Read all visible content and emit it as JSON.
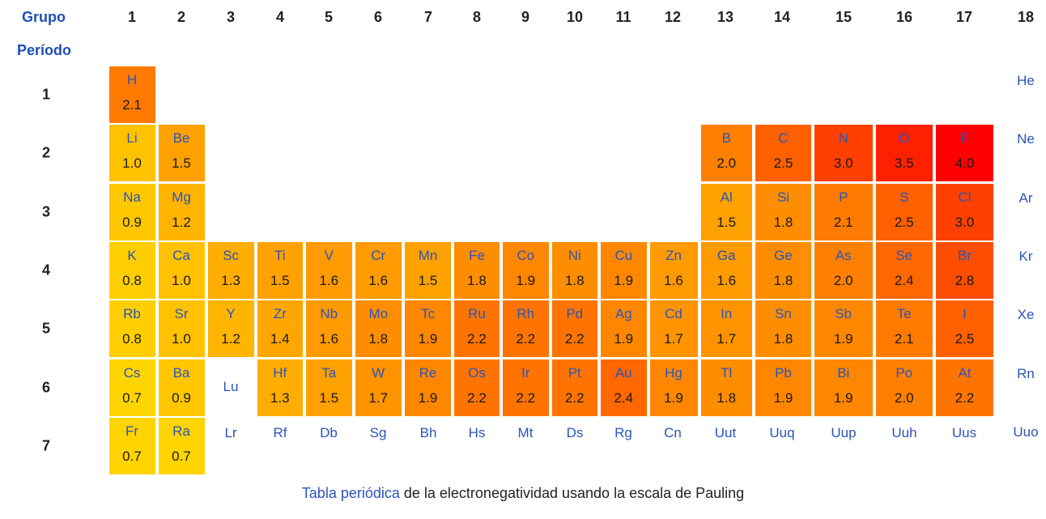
{
  "header": {
    "group_label": "Grupo",
    "period_label": "Período"
  },
  "groups": [
    "1",
    "2",
    "3",
    "4",
    "5",
    "6",
    "7",
    "8",
    "9",
    "10",
    "11",
    "12",
    "13",
    "14",
    "15",
    "16",
    "17",
    "18"
  ],
  "periods": [
    "1",
    "2",
    "3",
    "4",
    "5",
    "6",
    "7"
  ],
  "caption": {
    "link": "Tabla periódica",
    "rest": " de la electronegatividad usando la escala de Pauling"
  },
  "colors": {
    "low": "#ffd400",
    "high": "#ff0000",
    "symbol": "#2a55b8"
  },
  "chart_data": {
    "type": "heatmap",
    "title": "Tabla periódica de la electronegatividad usando la escala de Pauling",
    "xlabel": "Grupo",
    "ylabel": "Período",
    "scale_min": 0.7,
    "scale_max": 4.0,
    "elements": [
      {
        "symbol": "H",
        "period": 1,
        "group": 1,
        "value": 2.1
      },
      {
        "symbol": "He",
        "period": 1,
        "group": 18,
        "value": null
      },
      {
        "symbol": "Li",
        "period": 2,
        "group": 1,
        "value": 1.0
      },
      {
        "symbol": "Be",
        "period": 2,
        "group": 2,
        "value": 1.5
      },
      {
        "symbol": "B",
        "period": 2,
        "group": 13,
        "value": 2.0
      },
      {
        "symbol": "C",
        "period": 2,
        "group": 14,
        "value": 2.5
      },
      {
        "symbol": "N",
        "period": 2,
        "group": 15,
        "value": 3.0
      },
      {
        "symbol": "O",
        "period": 2,
        "group": 16,
        "value": 3.5
      },
      {
        "symbol": "F",
        "period": 2,
        "group": 17,
        "value": 4.0
      },
      {
        "symbol": "Ne",
        "period": 2,
        "group": 18,
        "value": null
      },
      {
        "symbol": "Na",
        "period": 3,
        "group": 1,
        "value": 0.9
      },
      {
        "symbol": "Mg",
        "period": 3,
        "group": 2,
        "value": 1.2
      },
      {
        "symbol": "Al",
        "period": 3,
        "group": 13,
        "value": 1.5
      },
      {
        "symbol": "Si",
        "period": 3,
        "group": 14,
        "value": 1.8
      },
      {
        "symbol": "P",
        "period": 3,
        "group": 15,
        "value": 2.1
      },
      {
        "symbol": "S",
        "period": 3,
        "group": 16,
        "value": 2.5
      },
      {
        "symbol": "Cl",
        "period": 3,
        "group": 17,
        "value": 3.0
      },
      {
        "symbol": "Ar",
        "period": 3,
        "group": 18,
        "value": null
      },
      {
        "symbol": "K",
        "period": 4,
        "group": 1,
        "value": 0.8
      },
      {
        "symbol": "Ca",
        "period": 4,
        "group": 2,
        "value": 1.0
      },
      {
        "symbol": "Sc",
        "period": 4,
        "group": 3,
        "value": 1.3
      },
      {
        "symbol": "Ti",
        "period": 4,
        "group": 4,
        "value": 1.5
      },
      {
        "symbol": "V",
        "period": 4,
        "group": 5,
        "value": 1.6
      },
      {
        "symbol": "Cr",
        "period": 4,
        "group": 6,
        "value": 1.6
      },
      {
        "symbol": "Mn",
        "period": 4,
        "group": 7,
        "value": 1.5
      },
      {
        "symbol": "Fe",
        "period": 4,
        "group": 8,
        "value": 1.8
      },
      {
        "symbol": "Co",
        "period": 4,
        "group": 9,
        "value": 1.9
      },
      {
        "symbol": "Ni",
        "period": 4,
        "group": 10,
        "value": 1.8
      },
      {
        "symbol": "Cu",
        "period": 4,
        "group": 11,
        "value": 1.9
      },
      {
        "symbol": "Zn",
        "period": 4,
        "group": 12,
        "value": 1.6
      },
      {
        "symbol": "Ga",
        "period": 4,
        "group": 13,
        "value": 1.6
      },
      {
        "symbol": "Ge",
        "period": 4,
        "group": 14,
        "value": 1.8
      },
      {
        "symbol": "As",
        "period": 4,
        "group": 15,
        "value": 2.0
      },
      {
        "symbol": "Se",
        "period": 4,
        "group": 16,
        "value": 2.4
      },
      {
        "symbol": "Br",
        "period": 4,
        "group": 17,
        "value": 2.8
      },
      {
        "symbol": "Kr",
        "period": 4,
        "group": 18,
        "value": null
      },
      {
        "symbol": "Rb",
        "period": 5,
        "group": 1,
        "value": 0.8
      },
      {
        "symbol": "Sr",
        "period": 5,
        "group": 2,
        "value": 1.0
      },
      {
        "symbol": "Y",
        "period": 5,
        "group": 3,
        "value": 1.2
      },
      {
        "symbol": "Zr",
        "period": 5,
        "group": 4,
        "value": 1.4
      },
      {
        "symbol": "Nb",
        "period": 5,
        "group": 5,
        "value": 1.6
      },
      {
        "symbol": "Mo",
        "period": 5,
        "group": 6,
        "value": 1.8
      },
      {
        "symbol": "Tc",
        "period": 5,
        "group": 7,
        "value": 1.9
      },
      {
        "symbol": "Ru",
        "period": 5,
        "group": 8,
        "value": 2.2
      },
      {
        "symbol": "Rh",
        "period": 5,
        "group": 9,
        "value": 2.2
      },
      {
        "symbol": "Pd",
        "period": 5,
        "group": 10,
        "value": 2.2
      },
      {
        "symbol": "Ag",
        "period": 5,
        "group": 11,
        "value": 1.9
      },
      {
        "symbol": "Cd",
        "period": 5,
        "group": 12,
        "value": 1.7
      },
      {
        "symbol": "In",
        "period": 5,
        "group": 13,
        "value": 1.7
      },
      {
        "symbol": "Sn",
        "period": 5,
        "group": 14,
        "value": 1.8
      },
      {
        "symbol": "Sb",
        "period": 5,
        "group": 15,
        "value": 1.9
      },
      {
        "symbol": "Te",
        "period": 5,
        "group": 16,
        "value": 2.1
      },
      {
        "symbol": "I",
        "period": 5,
        "group": 17,
        "value": 2.5
      },
      {
        "symbol": "Xe",
        "period": 5,
        "group": 18,
        "value": null
      },
      {
        "symbol": "Cs",
        "period": 6,
        "group": 1,
        "value": 0.7
      },
      {
        "symbol": "Ba",
        "period": 6,
        "group": 2,
        "value": 0.9
      },
      {
        "symbol": "Lu",
        "period": 6,
        "group": 3,
        "value": null
      },
      {
        "symbol": "Hf",
        "period": 6,
        "group": 4,
        "value": 1.3
      },
      {
        "symbol": "Ta",
        "period": 6,
        "group": 5,
        "value": 1.5
      },
      {
        "symbol": "W",
        "period": 6,
        "group": 6,
        "value": 1.7
      },
      {
        "symbol": "Re",
        "period": 6,
        "group": 7,
        "value": 1.9
      },
      {
        "symbol": "Os",
        "period": 6,
        "group": 8,
        "value": 2.2
      },
      {
        "symbol": "Ir",
        "period": 6,
        "group": 9,
        "value": 2.2
      },
      {
        "symbol": "Pt",
        "period": 6,
        "group": 10,
        "value": 2.2
      },
      {
        "symbol": "Au",
        "period": 6,
        "group": 11,
        "value": 2.4
      },
      {
        "symbol": "Hg",
        "period": 6,
        "group": 12,
        "value": 1.9
      },
      {
        "symbol": "Tl",
        "period": 6,
        "group": 13,
        "value": 1.8
      },
      {
        "symbol": "Pb",
        "period": 6,
        "group": 14,
        "value": 1.9
      },
      {
        "symbol": "Bi",
        "period": 6,
        "group": 15,
        "value": 1.9
      },
      {
        "symbol": "Po",
        "period": 6,
        "group": 16,
        "value": 2.0
      },
      {
        "symbol": "At",
        "period": 6,
        "group": 17,
        "value": 2.2
      },
      {
        "symbol": "Rn",
        "period": 6,
        "group": 18,
        "value": null
      },
      {
        "symbol": "Fr",
        "period": 7,
        "group": 1,
        "value": 0.7
      },
      {
        "symbol": "Ra",
        "period": 7,
        "group": 2,
        "value": 0.7
      },
      {
        "symbol": "Lr",
        "period": 7,
        "group": 3,
        "value": null
      },
      {
        "symbol": "Rf",
        "period": 7,
        "group": 4,
        "value": null
      },
      {
        "symbol": "Db",
        "period": 7,
        "group": 5,
        "value": null
      },
      {
        "symbol": "Sg",
        "period": 7,
        "group": 6,
        "value": null
      },
      {
        "symbol": "Bh",
        "period": 7,
        "group": 7,
        "value": null
      },
      {
        "symbol": "Hs",
        "period": 7,
        "group": 8,
        "value": null
      },
      {
        "symbol": "Mt",
        "period": 7,
        "group": 9,
        "value": null
      },
      {
        "symbol": "Ds",
        "period": 7,
        "group": 10,
        "value": null
      },
      {
        "symbol": "Rg",
        "period": 7,
        "group": 11,
        "value": null
      },
      {
        "symbol": "Cn",
        "period": 7,
        "group": 12,
        "value": null
      },
      {
        "symbol": "Uut",
        "period": 7,
        "group": 13,
        "value": null
      },
      {
        "symbol": "Uuq",
        "period": 7,
        "group": 14,
        "value": null
      },
      {
        "symbol": "Uup",
        "period": 7,
        "group": 15,
        "value": null
      },
      {
        "symbol": "Uuh",
        "period": 7,
        "group": 16,
        "value": null
      },
      {
        "symbol": "Uus",
        "period": 7,
        "group": 17,
        "value": null
      },
      {
        "symbol": "Uuo",
        "period": 7,
        "group": 18,
        "value": null
      }
    ]
  }
}
